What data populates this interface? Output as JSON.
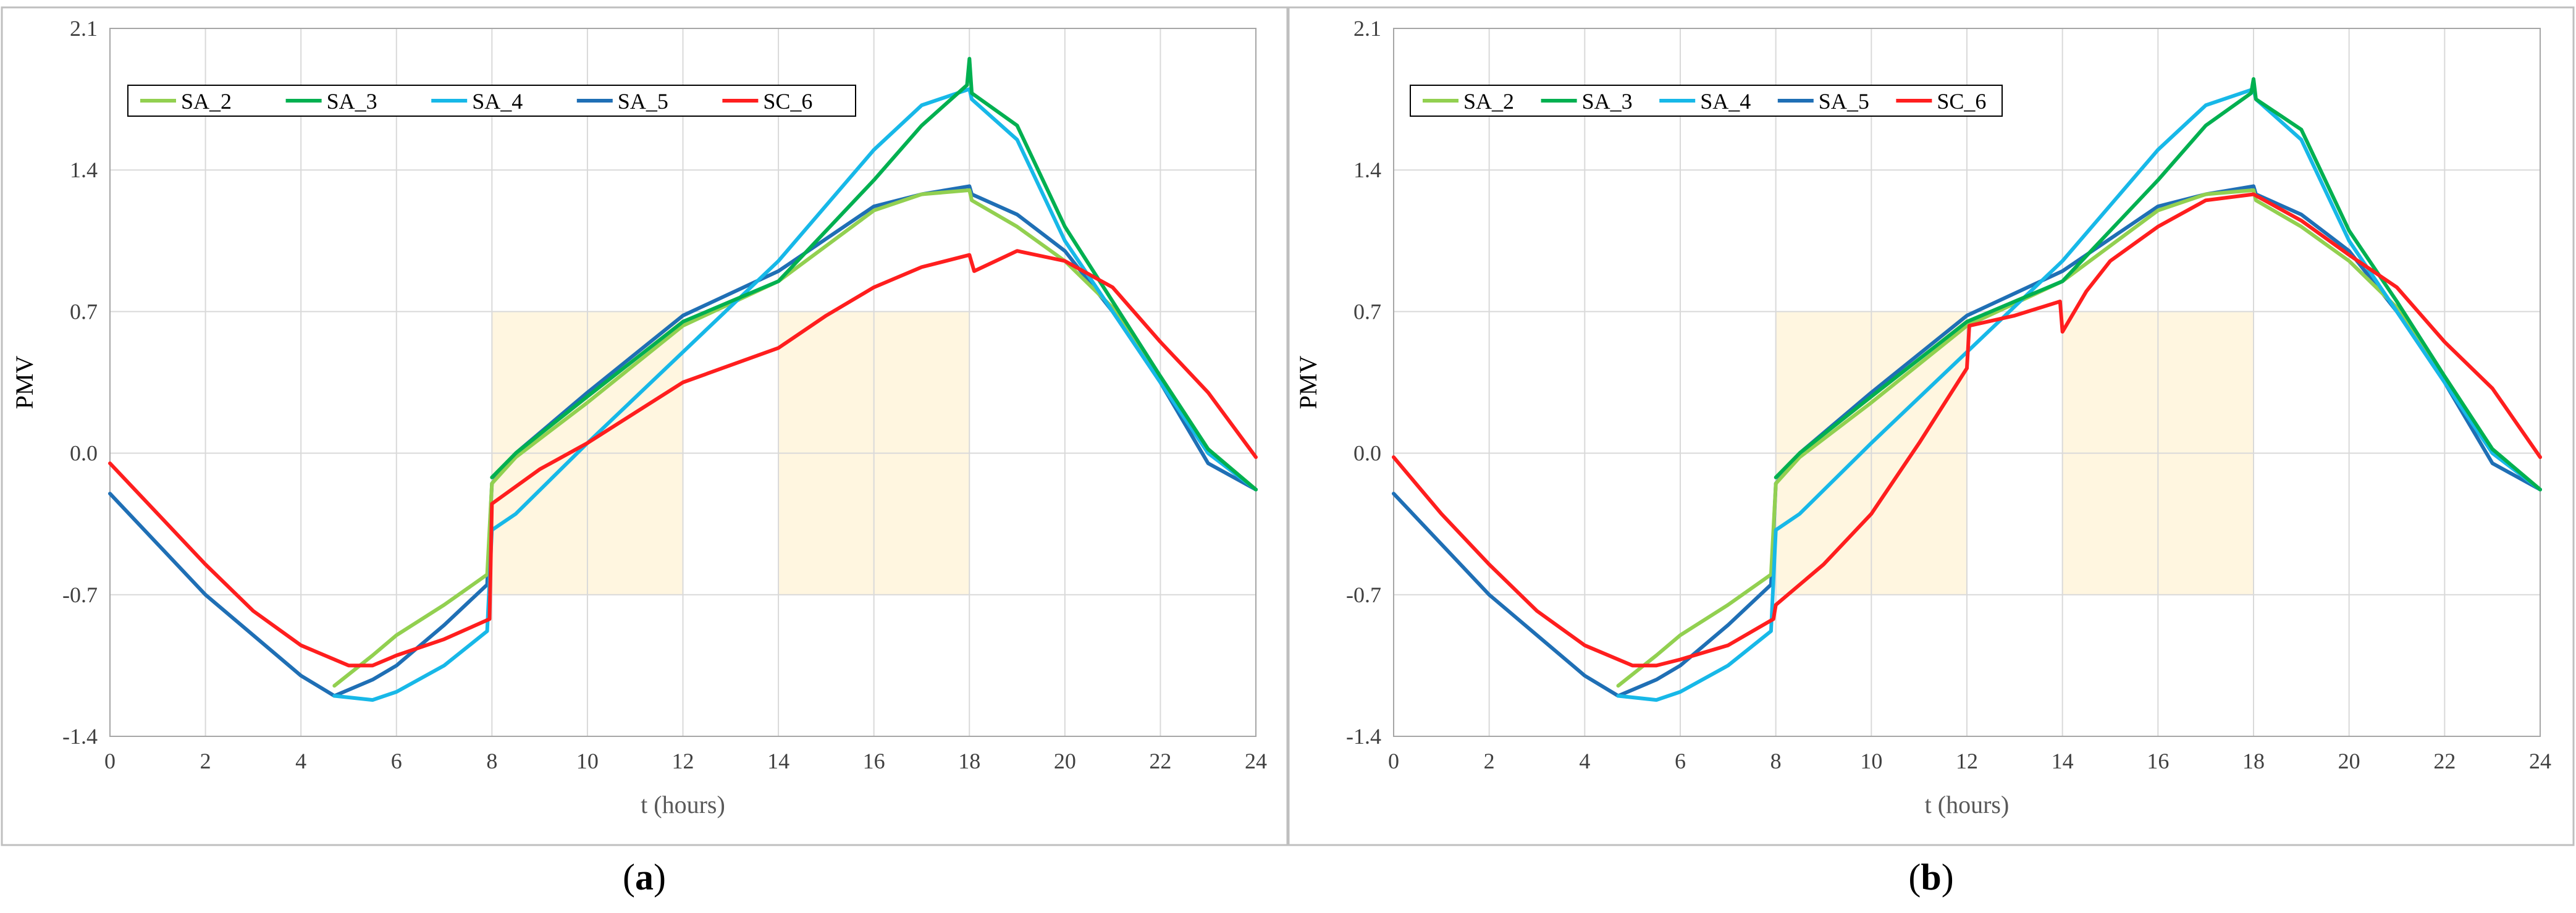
{
  "colors": {
    "SA_2": "#92D050",
    "SA_3": "#00B050",
    "SA_4": "#17B8E8",
    "SA_5": "#1F6FB5",
    "SC_6": "#FF1E1E",
    "comfort_band": "#FFF6E0",
    "grid": "#D9D9D9",
    "frame": "#BFBFBF"
  },
  "chart_data": [
    {
      "type": "line",
      "panel_label_open": "(",
      "panel_label_letter": "a",
      "panel_label_close": ")",
      "xlabel": "t (hours)",
      "ylabel": "PMV",
      "xlim": [
        0,
        24
      ],
      "ylim": [
        -1.4,
        2.1
      ],
      "xticks": [
        "0",
        "2",
        "4",
        "6",
        "8",
        "10",
        "12",
        "14",
        "16",
        "18",
        "20",
        "22",
        "24"
      ],
      "yticks": [
        "-1.4",
        "-0.7",
        "0.0",
        "0.7",
        "1.4",
        "2.1"
      ],
      "comfort_bands": [
        [
          8,
          12,
          -0.7,
          0.7
        ],
        [
          14,
          18,
          -0.7,
          0.7
        ]
      ],
      "legend": [
        "SA_2",
        "SA_3",
        "SA_4",
        "SA_5",
        "SC_6"
      ],
      "series": [
        {
          "name": "SA_5",
          "x": [
            0,
            1,
            2,
            3,
            4,
            4.7,
            5.5,
            6,
            7,
            7.9,
            8.0,
            8.5,
            10,
            12,
            14,
            16,
            17,
            18,
            18.05,
            19,
            20,
            21,
            22,
            23,
            24
          ],
          "y": [
            -0.2,
            -0.45,
            -0.7,
            -0.9,
            -1.1,
            -1.2,
            -1.12,
            -1.05,
            -0.85,
            -0.65,
            -0.15,
            0.0,
            0.3,
            0.68,
            0.9,
            1.22,
            1.28,
            1.32,
            1.28,
            1.18,
            1.0,
            0.7,
            0.35,
            -0.05,
            -0.18
          ]
        },
        {
          "name": "SA_2",
          "x": [
            4.7,
            5.5,
            6,
            7,
            7.9,
            8.0,
            8.5,
            10,
            12,
            14,
            16,
            17,
            18,
            18.05,
            19,
            20,
            21,
            22,
            23,
            24
          ],
          "y": [
            -1.15,
            -1.0,
            -0.9,
            -0.75,
            -0.6,
            -0.15,
            -0.02,
            0.25,
            0.63,
            0.85,
            1.2,
            1.28,
            1.3,
            1.25,
            1.12,
            0.95,
            0.72,
            0.38,
            0.02,
            -0.18
          ]
        },
        {
          "name": "SA_4",
          "x": [
            4.7,
            5.5,
            6,
            7,
            7.9,
            8.0,
            8.5,
            10,
            12,
            14,
            16,
            17,
            18,
            18.05,
            19,
            20,
            21,
            22,
            23,
            24
          ],
          "y": [
            -1.2,
            -1.22,
            -1.18,
            -1.05,
            -0.88,
            -0.38,
            -0.3,
            0.05,
            0.5,
            0.95,
            1.5,
            1.72,
            1.8,
            1.75,
            1.55,
            1.05,
            0.7,
            0.35,
            0.0,
            -0.18
          ]
        },
        {
          "name": "SA_3",
          "x": [
            8.0,
            8.5,
            10,
            12,
            14,
            16,
            17,
            17.95,
            18.0,
            18.05,
            19,
            20,
            21,
            22,
            23,
            24
          ],
          "y": [
            -0.12,
            0.0,
            0.28,
            0.65,
            0.85,
            1.35,
            1.62,
            1.82,
            1.95,
            1.78,
            1.62,
            1.12,
            0.75,
            0.38,
            0.02,
            -0.18
          ]
        },
        {
          "name": "SC_6",
          "x": [
            0,
            1,
            2,
            3,
            4,
            5,
            5.5,
            6,
            7,
            7.95,
            8.0,
            9,
            10,
            12,
            14,
            15,
            16,
            17,
            18,
            18.1,
            19,
            20,
            21,
            22,
            23,
            24
          ],
          "y": [
            -0.05,
            -0.3,
            -0.55,
            -0.78,
            -0.95,
            -1.05,
            -1.05,
            -1.0,
            -0.92,
            -0.82,
            -0.25,
            -0.08,
            0.05,
            0.35,
            0.52,
            0.68,
            0.82,
            0.92,
            0.98,
            0.9,
            1.0,
            0.95,
            0.82,
            0.55,
            0.3,
            -0.02
          ]
        }
      ]
    },
    {
      "type": "line",
      "panel_label_open": "(",
      "panel_label_letter": "b",
      "panel_label_close": ")",
      "xlabel": "t (hours)",
      "ylabel": "PMV",
      "xlim": [
        0,
        24
      ],
      "ylim": [
        -1.4,
        2.1
      ],
      "xticks": [
        "0",
        "2",
        "4",
        "6",
        "8",
        "10",
        "12",
        "14",
        "16",
        "18",
        "20",
        "22",
        "24"
      ],
      "yticks": [
        "-1.4",
        "-0.7",
        "0.0",
        "0.7",
        "1.4",
        "2.1"
      ],
      "comfort_bands": [
        [
          8,
          12,
          -0.7,
          0.7
        ],
        [
          14,
          18,
          -0.7,
          0.7
        ]
      ],
      "legend": [
        "SA_2",
        "SA_3",
        "SA_4",
        "SA_5",
        "SC_6"
      ],
      "series": [
        {
          "name": "SA_5",
          "x": [
            0,
            1,
            2,
            3,
            4,
            4.7,
            5.5,
            6,
            7,
            7.9,
            8.0,
            8.5,
            10,
            12,
            14,
            16,
            17,
            18,
            18.05,
            19,
            20,
            21,
            22,
            23,
            24
          ],
          "y": [
            -0.2,
            -0.45,
            -0.7,
            -0.9,
            -1.1,
            -1.2,
            -1.12,
            -1.05,
            -0.85,
            -0.65,
            -0.15,
            0.0,
            0.3,
            0.68,
            0.9,
            1.22,
            1.28,
            1.32,
            1.28,
            1.18,
            1.0,
            0.7,
            0.35,
            -0.05,
            -0.18
          ]
        },
        {
          "name": "SA_2",
          "x": [
            4.7,
            5.5,
            6,
            7,
            7.9,
            8.0,
            8.5,
            10,
            12,
            14,
            16,
            17,
            18,
            18.05,
            19,
            20,
            21,
            22,
            23,
            24
          ],
          "y": [
            -1.15,
            -1.0,
            -0.9,
            -0.75,
            -0.6,
            -0.15,
            -0.02,
            0.25,
            0.63,
            0.85,
            1.2,
            1.28,
            1.3,
            1.25,
            1.12,
            0.95,
            0.72,
            0.38,
            0.02,
            -0.18
          ]
        },
        {
          "name": "SA_4",
          "x": [
            4.7,
            5.5,
            6,
            7,
            7.9,
            8.0,
            8.5,
            10,
            12,
            14,
            16,
            17,
            18,
            18.05,
            19,
            20,
            21,
            22,
            23,
            24
          ],
          "y": [
            -1.2,
            -1.22,
            -1.18,
            -1.05,
            -0.88,
            -0.38,
            -0.3,
            0.05,
            0.5,
            0.95,
            1.5,
            1.72,
            1.8,
            1.75,
            1.55,
            1.05,
            0.7,
            0.35,
            0.0,
            -0.18
          ]
        },
        {
          "name": "SA_3",
          "x": [
            8.0,
            8.5,
            10,
            12,
            14,
            16,
            17,
            17.95,
            18.0,
            18.05,
            19,
            20,
            21,
            22,
            23,
            24
          ],
          "y": [
            -0.12,
            0.0,
            0.28,
            0.65,
            0.85,
            1.35,
            1.62,
            1.78,
            1.85,
            1.75,
            1.6,
            1.1,
            0.75,
            0.38,
            0.02,
            -0.18
          ]
        },
        {
          "name": "SC_6",
          "x": [
            0,
            1,
            2,
            3,
            4,
            5,
            5.5,
            6,
            7,
            7.95,
            8.0,
            9,
            10,
            11,
            12,
            12.05,
            13,
            13.95,
            14.0,
            14.5,
            15,
            16,
            17,
            18,
            19,
            20,
            21,
            22,
            23,
            24
          ],
          "y": [
            -0.02,
            -0.3,
            -0.55,
            -0.78,
            -0.95,
            -1.05,
            -1.05,
            -1.02,
            -0.95,
            -0.82,
            -0.75,
            -0.55,
            -0.3,
            0.05,
            0.42,
            0.63,
            0.68,
            0.75,
            0.6,
            0.8,
            0.95,
            1.12,
            1.25,
            1.28,
            1.15,
            0.98,
            0.82,
            0.55,
            0.32,
            -0.02
          ]
        }
      ]
    }
  ]
}
